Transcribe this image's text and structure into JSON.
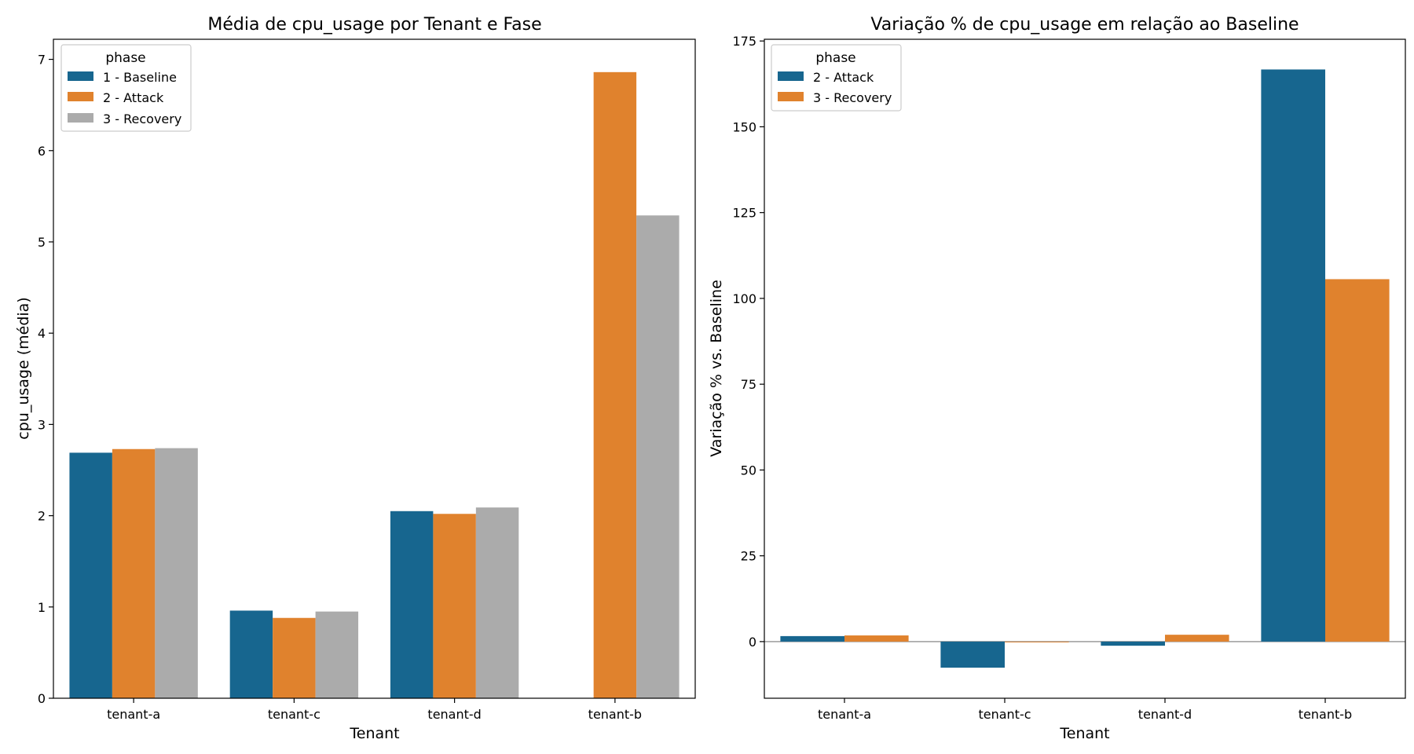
{
  "chart_data": [
    {
      "type": "bar",
      "title": "Média de cpu_usage por Tenant e Fase",
      "xlabel": "Tenant",
      "ylabel": "cpu_usage (média)",
      "categories": [
        "tenant-a",
        "tenant-c",
        "tenant-d",
        "tenant-b"
      ],
      "ylim": [
        0,
        7.22
      ],
      "yticks": [
        0,
        1,
        2,
        3,
        4,
        5,
        6,
        7
      ],
      "ytick_labels": [
        "0",
        "1",
        "2",
        "3",
        "4",
        "5",
        "6",
        "7"
      ],
      "legend_title": "phase",
      "legend_position": "upper-left",
      "grid": false,
      "series": [
        {
          "name": "1 - Baseline",
          "color": "#17668f",
          "values": [
            2.69,
            0.96,
            2.05,
            null
          ]
        },
        {
          "name": "2 - Attack",
          "color": "#e0822d",
          "values": [
            2.73,
            0.88,
            2.02,
            6.86
          ]
        },
        {
          "name": "3 - Recovery",
          "color": "#ababab",
          "values": [
            2.74,
            0.95,
            2.09,
            5.29
          ]
        }
      ]
    },
    {
      "type": "bar",
      "title": "Variação % de cpu_usage em relação ao Baseline",
      "xlabel": "Tenant",
      "ylabel": "Variação % vs. Baseline",
      "categories": [
        "tenant-a",
        "tenant-c",
        "tenant-d",
        "tenant-b"
      ],
      "ylim": [
        -16.5,
        175.5
      ],
      "yticks": [
        0,
        25,
        50,
        75,
        100,
        125,
        150,
        175
      ],
      "ytick_labels": [
        "0",
        "25",
        "50",
        "75",
        "100",
        "125",
        "150",
        "175"
      ],
      "zero_line": true,
      "legend_title": "phase",
      "legend_position": "upper-left",
      "grid": false,
      "series": [
        {
          "name": "2 - Attack",
          "color": "#17668f",
          "values": [
            1.6,
            -7.6,
            -1.2,
            166.7
          ]
        },
        {
          "name": "3 - Recovery",
          "color": "#e0822d",
          "values": [
            1.8,
            -0.2,
            2.0,
            105.6
          ]
        }
      ]
    }
  ]
}
